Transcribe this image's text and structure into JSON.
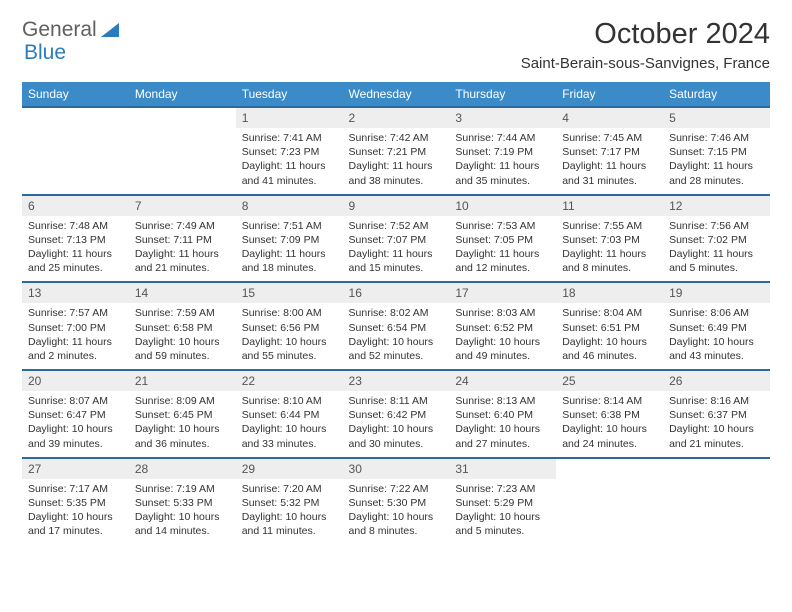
{
  "brand": {
    "part1": "General",
    "part2": "Blue",
    "color_accent": "#2b7bbf",
    "color_muted": "#5f5f5f"
  },
  "title": "October 2024",
  "location": "Saint-Berain-sous-Sanvignes, France",
  "header_bg": "#3b8bc8",
  "header_border": "#2b6a9e",
  "daynum_bg": "#eeeeee",
  "weekdays": [
    "Sunday",
    "Monday",
    "Tuesday",
    "Wednesday",
    "Thursday",
    "Friday",
    "Saturday"
  ],
  "weeks": [
    [
      null,
      null,
      {
        "d": "1",
        "sr": "7:41 AM",
        "ss": "7:23 PM",
        "dl": "11 hours and 41 minutes."
      },
      {
        "d": "2",
        "sr": "7:42 AM",
        "ss": "7:21 PM",
        "dl": "11 hours and 38 minutes."
      },
      {
        "d": "3",
        "sr": "7:44 AM",
        "ss": "7:19 PM",
        "dl": "11 hours and 35 minutes."
      },
      {
        "d": "4",
        "sr": "7:45 AM",
        "ss": "7:17 PM",
        "dl": "11 hours and 31 minutes."
      },
      {
        "d": "5",
        "sr": "7:46 AM",
        "ss": "7:15 PM",
        "dl": "11 hours and 28 minutes."
      }
    ],
    [
      {
        "d": "6",
        "sr": "7:48 AM",
        "ss": "7:13 PM",
        "dl": "11 hours and 25 minutes."
      },
      {
        "d": "7",
        "sr": "7:49 AM",
        "ss": "7:11 PM",
        "dl": "11 hours and 21 minutes."
      },
      {
        "d": "8",
        "sr": "7:51 AM",
        "ss": "7:09 PM",
        "dl": "11 hours and 18 minutes."
      },
      {
        "d": "9",
        "sr": "7:52 AM",
        "ss": "7:07 PM",
        "dl": "11 hours and 15 minutes."
      },
      {
        "d": "10",
        "sr": "7:53 AM",
        "ss": "7:05 PM",
        "dl": "11 hours and 12 minutes."
      },
      {
        "d": "11",
        "sr": "7:55 AM",
        "ss": "7:03 PM",
        "dl": "11 hours and 8 minutes."
      },
      {
        "d": "12",
        "sr": "7:56 AM",
        "ss": "7:02 PM",
        "dl": "11 hours and 5 minutes."
      }
    ],
    [
      {
        "d": "13",
        "sr": "7:57 AM",
        "ss": "7:00 PM",
        "dl": "11 hours and 2 minutes."
      },
      {
        "d": "14",
        "sr": "7:59 AM",
        "ss": "6:58 PM",
        "dl": "10 hours and 59 minutes."
      },
      {
        "d": "15",
        "sr": "8:00 AM",
        "ss": "6:56 PM",
        "dl": "10 hours and 55 minutes."
      },
      {
        "d": "16",
        "sr": "8:02 AM",
        "ss": "6:54 PM",
        "dl": "10 hours and 52 minutes."
      },
      {
        "d": "17",
        "sr": "8:03 AM",
        "ss": "6:52 PM",
        "dl": "10 hours and 49 minutes."
      },
      {
        "d": "18",
        "sr": "8:04 AM",
        "ss": "6:51 PM",
        "dl": "10 hours and 46 minutes."
      },
      {
        "d": "19",
        "sr": "8:06 AM",
        "ss": "6:49 PM",
        "dl": "10 hours and 43 minutes."
      }
    ],
    [
      {
        "d": "20",
        "sr": "8:07 AM",
        "ss": "6:47 PM",
        "dl": "10 hours and 39 minutes."
      },
      {
        "d": "21",
        "sr": "8:09 AM",
        "ss": "6:45 PM",
        "dl": "10 hours and 36 minutes."
      },
      {
        "d": "22",
        "sr": "8:10 AM",
        "ss": "6:44 PM",
        "dl": "10 hours and 33 minutes."
      },
      {
        "d": "23",
        "sr": "8:11 AM",
        "ss": "6:42 PM",
        "dl": "10 hours and 30 minutes."
      },
      {
        "d": "24",
        "sr": "8:13 AM",
        "ss": "6:40 PM",
        "dl": "10 hours and 27 minutes."
      },
      {
        "d": "25",
        "sr": "8:14 AM",
        "ss": "6:38 PM",
        "dl": "10 hours and 24 minutes."
      },
      {
        "d": "26",
        "sr": "8:16 AM",
        "ss": "6:37 PM",
        "dl": "10 hours and 21 minutes."
      }
    ],
    [
      {
        "d": "27",
        "sr": "7:17 AM",
        "ss": "5:35 PM",
        "dl": "10 hours and 17 minutes."
      },
      {
        "d": "28",
        "sr": "7:19 AM",
        "ss": "5:33 PM",
        "dl": "10 hours and 14 minutes."
      },
      {
        "d": "29",
        "sr": "7:20 AM",
        "ss": "5:32 PM",
        "dl": "10 hours and 11 minutes."
      },
      {
        "d": "30",
        "sr": "7:22 AM",
        "ss": "5:30 PM",
        "dl": "10 hours and 8 minutes."
      },
      {
        "d": "31",
        "sr": "7:23 AM",
        "ss": "5:29 PM",
        "dl": "10 hours and 5 minutes."
      },
      null,
      null
    ]
  ],
  "labels": {
    "sunrise": "Sunrise:",
    "sunset": "Sunset:",
    "daylight": "Daylight:"
  }
}
